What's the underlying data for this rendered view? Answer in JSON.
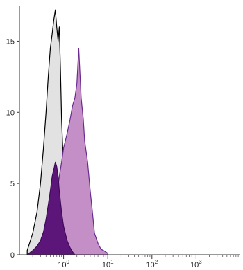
{
  "chart_data": {
    "type": "area",
    "title": "",
    "xlabel": "",
    "ylabel": "",
    "x_scale": "log",
    "xlim": [
      0.1,
      10000
    ],
    "ylim": [
      0,
      17.5
    ],
    "y_ticks": [
      0,
      5,
      10,
      15
    ],
    "x_ticks": [
      {
        "value": 1,
        "base": "10",
        "exp": "0"
      },
      {
        "value": 10,
        "base": "10",
        "exp": "1"
      },
      {
        "value": 100,
        "base": "10",
        "exp": "2"
      },
      {
        "value": 1000,
        "base": "10",
        "exp": "3"
      }
    ],
    "grid": false,
    "legend": "none",
    "series": [
      {
        "fill": "#e2e2e2",
        "stroke": "#000000",
        "x": [
          0.15,
          0.2,
          0.25,
          0.3,
          0.35,
          0.4,
          0.45,
          0.5,
          0.55,
          0.6,
          0.65,
          0.7,
          0.75,
          0.8,
          0.85,
          0.9,
          1.0,
          1.1,
          1.2,
          1.4,
          1.6
        ],
        "values": [
          0.3,
          1.5,
          3.0,
          5.0,
          7.5,
          10.0,
          12.5,
          14.5,
          15.5,
          16.5,
          17.2,
          16.0,
          15.0,
          16.0,
          13.0,
          9.5,
          6.0,
          3.0,
          1.5,
          0.5,
          0.1
        ]
      },
      {
        "fill": "#c48fc6",
        "stroke": "#6a2a8e",
        "x": [
          0.3,
          0.4,
          0.5,
          0.6,
          0.7,
          0.8,
          0.9,
          1.0,
          1.2,
          1.4,
          1.6,
          1.8,
          2.0,
          2.2,
          2.5,
          2.8,
          3.0,
          3.5,
          4.0,
          4.5,
          5.0,
          6.0,
          7.0,
          8.0,
          10.0
        ],
        "values": [
          0.3,
          0.8,
          1.5,
          2.8,
          4.0,
          5.5,
          6.5,
          7.5,
          8.5,
          9.5,
          10.5,
          11.0,
          12.0,
          14.5,
          11.0,
          9.5,
          8.0,
          6.5,
          4.5,
          3.0,
          1.5,
          0.8,
          0.4,
          0.3,
          0.1
        ]
      },
      {
        "fill": "#5c167a",
        "stroke": "#3e0a5a",
        "x": [
          0.15,
          0.2,
          0.25,
          0.3,
          0.35,
          0.4,
          0.45,
          0.5,
          0.55,
          0.6,
          0.65,
          0.7,
          0.75,
          0.8,
          0.9,
          1.0,
          1.2,
          1.4,
          1.6,
          1.8
        ],
        "values": [
          0.0,
          0.3,
          0.6,
          1.0,
          1.6,
          2.5,
          3.5,
          4.5,
          5.5,
          6.0,
          6.5,
          6.2,
          5.5,
          4.5,
          3.0,
          2.0,
          1.0,
          0.5,
          0.2,
          0.0
        ]
      }
    ]
  }
}
